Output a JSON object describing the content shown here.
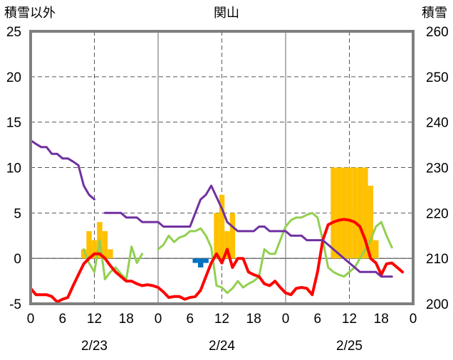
{
  "chart_data": {
    "type": "line",
    "title": "関山",
    "left_axis_title": "積雪以外",
    "right_axis_title": "積雪",
    "left_axis": {
      "ylim": [
        -5,
        25
      ],
      "ticks": [
        "-5",
        "0",
        "5",
        "10",
        "15",
        "20",
        "25"
      ]
    },
    "right_axis": {
      "ylim": [
        200,
        260
      ],
      "ticks": [
        "200",
        "210",
        "220",
        "230",
        "240",
        "250",
        "260"
      ]
    },
    "x_axis": {
      "range_hours": [
        0,
        72
      ],
      "hour_ticks": [
        0,
        6,
        12,
        18,
        24,
        30,
        36,
        42,
        48,
        54,
        60,
        66,
        72
      ],
      "hour_labels": [
        "0",
        "6",
        "12",
        "18",
        "0",
        "6",
        "12",
        "18",
        "0",
        "6",
        "12",
        "18",
        "0"
      ],
      "date_labels": [
        {
          "text": "2/23",
          "at_hour": 12
        },
        {
          "text": "2/24",
          "at_hour": 36
        },
        {
          "text": "2/25",
          "at_hour": 60
        }
      ],
      "solid_lines_at": [
        24,
        48
      ],
      "dashed_lines_at": [
        12,
        36,
        60
      ]
    },
    "grid": true,
    "series": [
      {
        "kind": "bar",
        "axis": "left",
        "color": "#ffc000",
        "bars": [
          {
            "x": 10,
            "y": 1
          },
          {
            "x": 11,
            "y": 3
          },
          {
            "x": 12,
            "y": 2
          },
          {
            "x": 13,
            "y": 4
          },
          {
            "x": 14,
            "y": 3
          },
          {
            "x": 15,
            "y": 1
          },
          {
            "x": 35,
            "y": 5
          },
          {
            "x": 36,
            "y": 7
          },
          {
            "x": 37,
            "y": 3
          },
          {
            "x": 38,
            "y": 5
          },
          {
            "x": 57,
            "y": 10
          },
          {
            "x": 58,
            "y": 10
          },
          {
            "x": 59,
            "y": 10
          },
          {
            "x": 60,
            "y": 10
          },
          {
            "x": 61,
            "y": 10
          },
          {
            "x": 62,
            "y": 10
          },
          {
            "x": 63,
            "y": 10
          },
          {
            "x": 64,
            "y": 8
          },
          {
            "x": 65,
            "y": 2
          }
        ]
      },
      {
        "kind": "bar",
        "axis": "left",
        "color": "#0070c0",
        "bars": [
          {
            "x": 31,
            "y": -0.5
          },
          {
            "x": 32,
            "y": -1
          },
          {
            "x": 33,
            "y": -0.5
          }
        ]
      },
      {
        "kind": "line",
        "axis": "left",
        "color": "#92d050",
        "points": [
          [
            10,
            1
          ],
          [
            11,
            -0.5
          ],
          [
            12,
            -1.5
          ],
          [
            13,
            2
          ],
          [
            14,
            -2.3
          ],
          [
            15,
            -1.5
          ],
          [
            16,
            -1
          ],
          [
            17,
            -1.7
          ],
          [
            18,
            -2.3
          ],
          [
            19,
            1.3
          ],
          [
            20,
            -0.5
          ],
          [
            21,
            0.5
          ],
          [
            24,
            1
          ],
          [
            25,
            1.5
          ],
          [
            26,
            2.5
          ],
          [
            27,
            1.8
          ],
          [
            28,
            2.3
          ],
          [
            29,
            2.5
          ],
          [
            30,
            3
          ],
          [
            31,
            3
          ],
          [
            32,
            3.3
          ],
          [
            33,
            2.5
          ],
          [
            34,
            1.2
          ],
          [
            35,
            -3
          ],
          [
            36,
            -3.2
          ],
          [
            37,
            -3.8
          ],
          [
            38,
            -3.3
          ],
          [
            39,
            -2.5
          ],
          [
            40,
            -3.2
          ],
          [
            41,
            -2.8
          ],
          [
            42,
            -2.5
          ],
          [
            43,
            -2
          ],
          [
            44,
            1
          ],
          [
            45,
            0.5
          ],
          [
            46,
            0.5
          ],
          [
            47,
            2
          ],
          [
            48,
            3.5
          ],
          [
            49,
            4.2
          ],
          [
            50,
            4.5
          ],
          [
            51,
            4.5
          ],
          [
            52,
            4.8
          ],
          [
            53,
            5
          ],
          [
            54,
            4.5
          ],
          [
            55,
            2
          ],
          [
            56,
            -1
          ],
          [
            57,
            -1.5
          ],
          [
            58,
            -1.8
          ],
          [
            59,
            -2
          ],
          [
            60,
            -1.5
          ],
          [
            61,
            -1
          ],
          [
            62,
            0
          ],
          [
            63,
            1
          ],
          [
            64,
            2
          ],
          [
            65,
            3.5
          ],
          [
            66,
            4
          ],
          [
            67,
            2.5
          ],
          [
            68,
            1.2
          ]
        ]
      },
      {
        "kind": "line",
        "axis": "left",
        "color": "#ff0000",
        "points": [
          [
            0,
            -3.3
          ],
          [
            1,
            -4
          ],
          [
            2,
            -4
          ],
          [
            3,
            -4
          ],
          [
            4,
            -4.2
          ],
          [
            5,
            -4.8
          ],
          [
            6,
            -4.5
          ],
          [
            7,
            -4.3
          ],
          [
            8,
            -3
          ],
          [
            9,
            -1.8
          ],
          [
            10,
            -0.6
          ],
          [
            11,
            0
          ],
          [
            12,
            0.5
          ],
          [
            13,
            0.5
          ],
          [
            14,
            0
          ],
          [
            15,
            -0.8
          ],
          [
            16,
            -1.5
          ],
          [
            17,
            -2
          ],
          [
            18,
            -2.5
          ],
          [
            19,
            -2.5
          ],
          [
            20,
            -2.8
          ],
          [
            21,
            -3
          ],
          [
            22,
            -2.9
          ],
          [
            23,
            -3
          ],
          [
            24,
            -3.2
          ],
          [
            25,
            -3.7
          ],
          [
            26,
            -4.3
          ],
          [
            27,
            -4.2
          ],
          [
            28,
            -4.2
          ],
          [
            29,
            -4.5
          ],
          [
            30,
            -4.3
          ],
          [
            31,
            -4.2
          ],
          [
            32,
            -3.5
          ],
          [
            33,
            -2
          ],
          [
            34,
            -0.5
          ],
          [
            35,
            0.5
          ],
          [
            36,
            -0.5
          ],
          [
            37,
            1
          ],
          [
            38,
            -1
          ],
          [
            39,
            0
          ],
          [
            40,
            0
          ],
          [
            41,
            -1.5
          ],
          [
            42,
            -1.8
          ],
          [
            43,
            -2
          ],
          [
            44,
            -2.8
          ],
          [
            45,
            -3
          ],
          [
            46,
            -2.5
          ],
          [
            47,
            -3.2
          ],
          [
            48,
            -3.8
          ],
          [
            49,
            -4
          ],
          [
            50,
            -3.3
          ],
          [
            51,
            -3.2
          ],
          [
            52,
            -3.3
          ],
          [
            53,
            -4
          ],
          [
            54,
            -1.5
          ],
          [
            55,
            2
          ],
          [
            56,
            3.7
          ],
          [
            57,
            4
          ],
          [
            58,
            4.2
          ],
          [
            59,
            4.3
          ],
          [
            60,
            4.2
          ],
          [
            61,
            4
          ],
          [
            62,
            3.5
          ],
          [
            63,
            2
          ],
          [
            64,
            0
          ],
          [
            65,
            -0.5
          ],
          [
            66,
            -1.8
          ],
          [
            67,
            -0.6
          ],
          [
            68,
            -0.5
          ],
          [
            69,
            -1
          ],
          [
            70,
            -1.5
          ]
        ]
      },
      {
        "kind": "line",
        "axis": "right",
        "color": "#7030a0",
        "points": [
          [
            0,
            236
          ],
          [
            1,
            235.2
          ],
          [
            2,
            234.5
          ],
          [
            3,
            234.5
          ],
          [
            4,
            233
          ],
          [
            5,
            233
          ],
          [
            6,
            232
          ],
          [
            7,
            232
          ],
          [
            8,
            231.3
          ],
          [
            9,
            230.5
          ],
          [
            10,
            226
          ],
          [
            11,
            224
          ],
          [
            12,
            223
          ],
          [
            14,
            220
          ],
          [
            15,
            220
          ],
          [
            16,
            220
          ],
          [
            17,
            220
          ],
          [
            18,
            219
          ],
          [
            19,
            219
          ],
          [
            20,
            219
          ],
          [
            21,
            218
          ],
          [
            22,
            218
          ],
          [
            23,
            218
          ],
          [
            24,
            218
          ],
          [
            25,
            217
          ],
          [
            26,
            217
          ],
          [
            27,
            217
          ],
          [
            28,
            217
          ],
          [
            29,
            217
          ],
          [
            30,
            217
          ],
          [
            31,
            220
          ],
          [
            32,
            223
          ],
          [
            33,
            224
          ],
          [
            34,
            226
          ],
          [
            35,
            223.5
          ],
          [
            36,
            221
          ],
          [
            37,
            218
          ],
          [
            38,
            217
          ],
          [
            39,
            216
          ],
          [
            40,
            216
          ],
          [
            41,
            216
          ],
          [
            42,
            216
          ],
          [
            43,
            217
          ],
          [
            44,
            217
          ],
          [
            45,
            216
          ],
          [
            46,
            216
          ],
          [
            47,
            216
          ],
          [
            48,
            216
          ],
          [
            49,
            215
          ],
          [
            50,
            215
          ],
          [
            51,
            215
          ],
          [
            52,
            214
          ],
          [
            53,
            214
          ],
          [
            54,
            214
          ],
          [
            55,
            214
          ],
          [
            56,
            213
          ],
          [
            57,
            212
          ],
          [
            58,
            211
          ],
          [
            59,
            210
          ],
          [
            60,
            209
          ],
          [
            61,
            208
          ],
          [
            62,
            207
          ],
          [
            63,
            207
          ],
          [
            64,
            207
          ],
          [
            65,
            207
          ],
          [
            66,
            206
          ],
          [
            67,
            206
          ],
          [
            68,
            206
          ]
        ]
      }
    ]
  }
}
